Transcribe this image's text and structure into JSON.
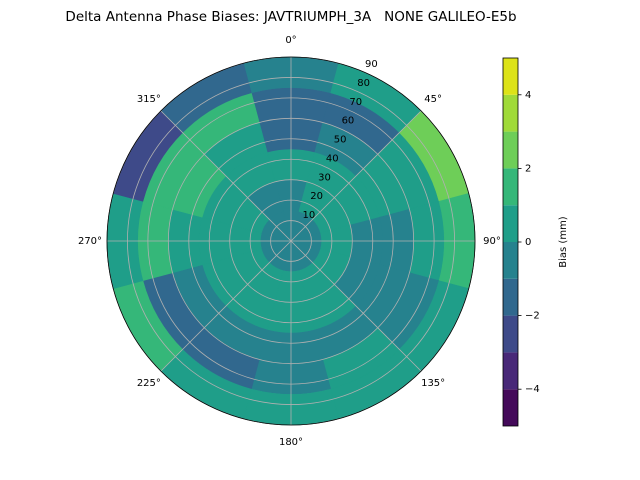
{
  "chart_data": {
    "type": "polar_contour",
    "title": "Delta Antenna Phase Biases: JAVTRIUMPH_3A   NONE GALILEO-E5b",
    "colorbar_label": "Bias (mm)",
    "azimuth": [
      0,
      30,
      60,
      90,
      120,
      150,
      180,
      210,
      240,
      270,
      300,
      330
    ],
    "zenith_edges": [
      0,
      15,
      30,
      45,
      60,
      75,
      90
    ],
    "values": [
      [
        -0.5,
        -0.5,
        0.5,
        -1.5,
        -1.5,
        -0.5
      ],
      [
        -0.5,
        0.5,
        0.5,
        -0.5,
        -1.5,
        0.5
      ],
      [
        -0.5,
        0.5,
        0.5,
        0.5,
        0.5,
        2.5
      ],
      [
        -0.5,
        0.5,
        -0.5,
        -0.5,
        0.5,
        1.5
      ],
      [
        -0.5,
        0.5,
        -0.5,
        -0.5,
        -0.5,
        0.5
      ],
      [
        -0.5,
        0.5,
        0.5,
        -0.5,
        0.5,
        0.5
      ],
      [
        -0.5,
        0.5,
        0.5,
        -0.5,
        -0.5,
        0.5
      ],
      [
        -0.5,
        0.5,
        0.5,
        -0.5,
        -1.5,
        0.5
      ],
      [
        -0.5,
        0.5,
        0.5,
        -0.5,
        -1.5,
        1.5
      ],
      [
        -0.5,
        0.5,
        0.5,
        0.5,
        1.5,
        0.5
      ],
      [
        -0.5,
        0.5,
        0.5,
        1.5,
        1.5,
        -2.5
      ],
      [
        -0.5,
        -0.5,
        0.5,
        0.5,
        1.5,
        -1.5
      ]
    ],
    "rlim": [
      0,
      90
    ],
    "rticks": [
      10,
      20,
      30,
      40,
      50,
      60,
      70,
      80,
      90
    ],
    "thetaticks": [
      {
        "value": 0,
        "label": "0°"
      },
      {
        "value": 45,
        "label": "45°"
      },
      {
        "value": 90,
        "label": "90°"
      },
      {
        "value": 135,
        "label": "135°"
      },
      {
        "value": 180,
        "label": "180°"
      },
      {
        "value": 225,
        "label": "225°"
      },
      {
        "value": 270,
        "label": "270°"
      },
      {
        "value": 315,
        "label": "315°"
      }
    ],
    "levels": [
      -5,
      -4,
      -3,
      -2,
      -1,
      0,
      1,
      2,
      3,
      4,
      5
    ],
    "colors": [
      "#440a5a",
      "#482878",
      "#3e4a89",
      "#31688e",
      "#26828e",
      "#1f9e89",
      "#35b779",
      "#6ece58",
      "#a0da39",
      "#dde318"
    ],
    "colorbar_lim": [
      -5,
      5
    ],
    "colorbar_ticks": [
      {
        "value": -4,
        "label": "−4"
      },
      {
        "value": -2,
        "label": "−2"
      },
      0,
      2,
      4
    ],
    "grid": true
  }
}
